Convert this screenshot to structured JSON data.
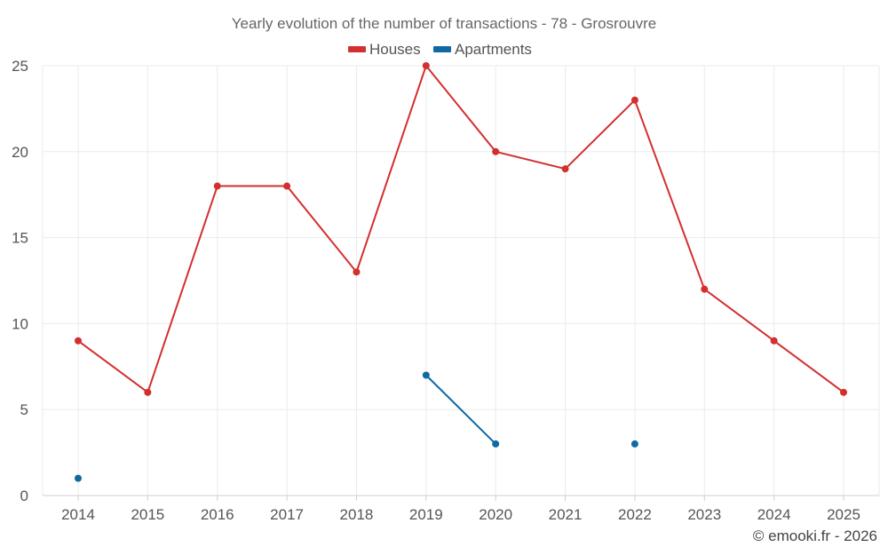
{
  "chart_data": {
    "type": "line",
    "title": "Yearly evolution of the number of transactions - 78 - Grosrouvre",
    "categories": [
      "2014",
      "2015",
      "2016",
      "2017",
      "2018",
      "2019",
      "2020",
      "2021",
      "2022",
      "2023",
      "2024",
      "2025"
    ],
    "series": [
      {
        "name": "Houses",
        "color": "#d32f2f",
        "values": [
          9,
          6,
          18,
          18,
          13,
          25,
          20,
          19,
          23,
          12,
          9,
          6
        ]
      },
      {
        "name": "Apartments",
        "color": "#0e6aa1",
        "values": [
          1,
          null,
          null,
          null,
          null,
          7,
          3,
          null,
          3,
          null,
          null,
          null
        ]
      }
    ],
    "ylim": [
      0,
      25
    ],
    "yticks": [
      "0",
      "5",
      "10",
      "15",
      "20",
      "25"
    ],
    "xlabel": "",
    "ylabel": "",
    "grid": true,
    "legend": "top-center"
  },
  "credit": "© emooki.fr - 2026"
}
